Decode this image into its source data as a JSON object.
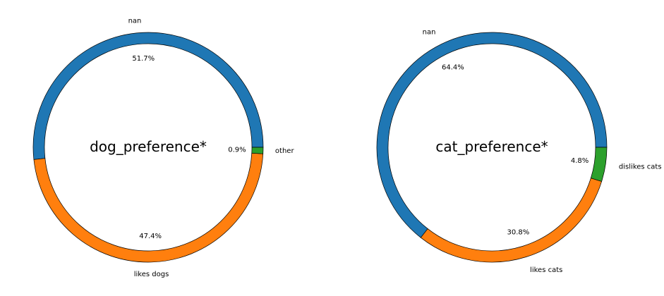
{
  "chart_data": [
    {
      "type": "pie",
      "style": "donut",
      "center_title": "dog_preference*",
      "start_angle_deg": 0,
      "direction": "counterclockwise",
      "slices": [
        {
          "label": "nan",
          "value": 51.7,
          "pct_label": "51.7%",
          "color": "#1f77b4"
        },
        {
          "label": "likes dogs",
          "value": 47.4,
          "pct_label": "47.4%",
          "color": "#ff7f0e"
        },
        {
          "label": "other",
          "value": 0.9,
          "pct_label": "0.9%",
          "color": "#2ca02c"
        }
      ]
    },
    {
      "type": "pie",
      "style": "donut",
      "center_title": "cat_preference*",
      "start_angle_deg": 0,
      "direction": "counterclockwise",
      "slices": [
        {
          "label": "nan",
          "value": 64.4,
          "pct_label": "64.4%",
          "color": "#1f77b4"
        },
        {
          "label": "likes cats",
          "value": 30.8,
          "pct_label": "30.8%",
          "color": "#ff7f0e"
        },
        {
          "label": "dislikes cats",
          "value": 4.8,
          "pct_label": "4.8%",
          "color": "#2ca02c"
        }
      ]
    }
  ]
}
